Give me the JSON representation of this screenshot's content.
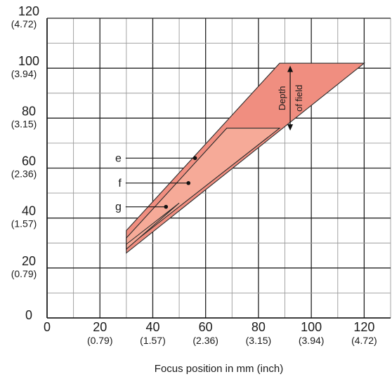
{
  "chart_data": {
    "type": "area",
    "title": "",
    "xlabel": "Focus position in mm (inch)",
    "ylabel": "",
    "xlim": [
      0,
      130
    ],
    "ylim": [
      0,
      120
    ],
    "grid": true,
    "x_ticks": [
      {
        "value": 0,
        "label": "0",
        "sublabel": ""
      },
      {
        "value": 20,
        "label": "20",
        "sublabel": "(0.79)"
      },
      {
        "value": 40,
        "label": "40",
        "sublabel": "(1.57)"
      },
      {
        "value": 60,
        "label": "60",
        "sublabel": "(2.36)"
      },
      {
        "value": 80,
        "label": "80",
        "sublabel": "(3.15)"
      },
      {
        "value": 100,
        "label": "100",
        "sublabel": "(3.94)"
      },
      {
        "value": 120,
        "label": "120",
        "sublabel": "(4.72)"
      }
    ],
    "y_ticks": [
      {
        "value": 0,
        "label": "0",
        "sublabel": ""
      },
      {
        "value": 20,
        "label": "20",
        "sublabel": "(0.79)"
      },
      {
        "value": 40,
        "label": "40",
        "sublabel": "(1.57)"
      },
      {
        "value": 60,
        "label": "60",
        "sublabel": "(2.36)"
      },
      {
        "value": 80,
        "label": "80",
        "sublabel": "(3.15)"
      },
      {
        "value": 100,
        "label": "100",
        "sublabel": "(3.94)"
      },
      {
        "value": 120,
        "label": "120",
        "sublabel": "(4.72)"
      }
    ],
    "series": [
      {
        "name": "e",
        "color": "#f08e80",
        "polygon": [
          [
            30,
            35
          ],
          [
            88,
            102
          ],
          [
            120,
            102
          ],
          [
            30,
            26
          ]
        ]
      },
      {
        "name": "f",
        "color": "#f6aa98",
        "polygon": [
          [
            30,
            32
          ],
          [
            68,
            76
          ],
          [
            88,
            76
          ],
          [
            30,
            28
          ]
        ]
      },
      {
        "name": "g",
        "color": "#f6aa98",
        "polygon": [
          [
            30,
            29.5
          ],
          [
            50,
            46
          ],
          [
            30,
            27.5
          ]
        ]
      }
    ],
    "markers": [
      {
        "label": "e",
        "point": [
          56,
          64
        ],
        "label_at": [
          30,
          64
        ]
      },
      {
        "label": "f",
        "point": [
          53.5,
          54
        ],
        "label_at": [
          30,
          54
        ]
      },
      {
        "label": "g",
        "point": [
          45,
          44.5
        ],
        "label_at": [
          30,
          44.5
        ]
      }
    ],
    "annotation": {
      "line1": "Depth",
      "line2": "of field",
      "x": 92,
      "y_from": 101,
      "y_to": 75
    }
  }
}
